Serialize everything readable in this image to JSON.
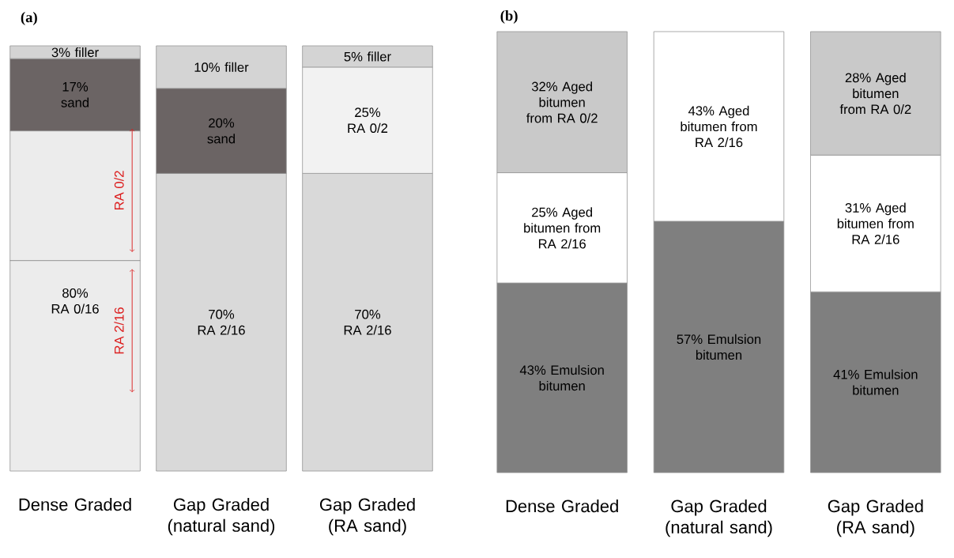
{
  "chart_data": [
    {
      "type": "bar",
      "title": "(a)",
      "stacked": true,
      "categories": [
        "Dense Graded",
        "Gap Graded (natural sand)",
        "Gap Graded (RA sand)"
      ],
      "series": [
        {
          "color": "#ececec",
          "values": [
            80,
            null,
            null
          ],
          "value_labels": [
            "80% RA 0/16",
            null,
            null
          ]
        },
        {
          "color": "#d9d9d9",
          "values": [
            null,
            70,
            70
          ],
          "value_labels": [
            null,
            "70% RA 2/16",
            "70% RA 2/16"
          ]
        },
        {
          "color": "#f2f2f2",
          "values": [
            null,
            null,
            25
          ],
          "value_labels": [
            null,
            null,
            "25% RA 0/2"
          ]
        },
        {
          "color": "#6b6464",
          "values": [
            17,
            20,
            null
          ],
          "value_labels": [
            "17% sand",
            "20% sand",
            null
          ]
        },
        {
          "color": "#d4d4d4",
          "values": [
            3,
            10,
            5
          ],
          "value_labels": [
            "3% filler",
            "10% filler",
            "5% filler"
          ]
        }
      ],
      "annotations": [
        "RA 0/2",
        "RA 2/16"
      ]
    },
    {
      "type": "bar",
      "title": "(b)",
      "stacked": true,
      "categories": [
        "Dense Graded",
        "Gap Graded (natural sand)",
        "Gap Graded (RA sand)"
      ],
      "series": [
        {
          "color": "#7f7f7f",
          "values": [
            43,
            57,
            41
          ],
          "value_labels": [
            "43% Emulsion bitumen",
            "57% Emulsion bitumen",
            "41% Emulsion bitumen"
          ]
        },
        {
          "color": "#ffffff",
          "values": [
            25,
            43,
            31
          ],
          "value_labels": [
            "25% Aged bitumen from RA 2/16",
            "43% Aged bitumen from RA 2/16",
            "31% Aged bitumen from RA 2/16"
          ]
        },
        {
          "color": "#c9c9c9",
          "values": [
            32,
            null,
            28
          ],
          "value_labels": [
            "32% Aged bitumen from RA 0/2",
            null,
            "28% Aged bitumen from RA 0/2"
          ]
        }
      ]
    }
  ]
}
